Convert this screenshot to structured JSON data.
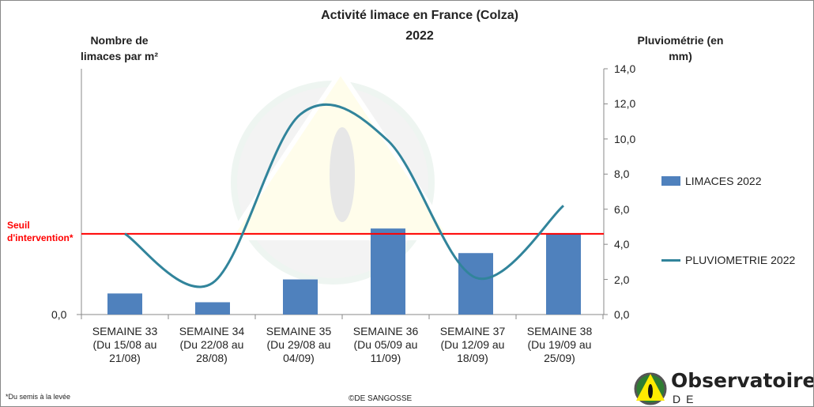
{
  "chart_data": {
    "type": "bar+line",
    "title": "Activité limace en France (Colza)",
    "subtitle": "2022",
    "ylabel_left": "Nombre de limaces par m²",
    "ylabel_right": "Pluviométrie (en mm)",
    "categories": [
      [
        "SEMAINE 33",
        "(Du 15/08 au",
        "21/08)"
      ],
      [
        "SEMAINE 34",
        "(Du 22/08 au",
        "28/08)"
      ],
      [
        "SEMAINE 35",
        "(Du 29/08 au",
        "04/09)"
      ],
      [
        "SEMAINE 36",
        "(Du 05/09 au",
        "11/09)"
      ],
      [
        "SEMAINE 37",
        "(Du 12/09 au",
        "18/09)"
      ],
      [
        "SEMAINE 38",
        "(Du 19/09 au",
        "25/09)"
      ]
    ],
    "left_ticks": [
      "0,0"
    ],
    "right_ticks": [
      "0,0",
      "2,0",
      "4,0",
      "6,0",
      "8,0",
      "10,0",
      "12,0",
      "14,0"
    ],
    "ylim_right": [
      0,
      14
    ],
    "series": [
      {
        "name": "LIMACES 2022",
        "type": "bar",
        "color": "#4f81bd",
        "values": [
          1.2,
          0.7,
          2.0,
          4.9,
          3.5,
          4.6
        ]
      },
      {
        "name": "PLUVIOMETRIE 2022",
        "type": "line",
        "color": "#31849b",
        "values": [
          4.6,
          1.8,
          11.4,
          9.9,
          2.1,
          6.2
        ]
      }
    ],
    "threshold": {
      "label_1": "Seuil",
      "label_2": "d'intervention*",
      "value": 4.6,
      "color": "#ff0000"
    },
    "legend_position": "right"
  },
  "footnote": "*Du semis à la levée",
  "copyright": "©DE SANGOSSE",
  "logo": {
    "line1": "Observatoire",
    "reg": "®",
    "line2": "DE SANGOSSE"
  }
}
